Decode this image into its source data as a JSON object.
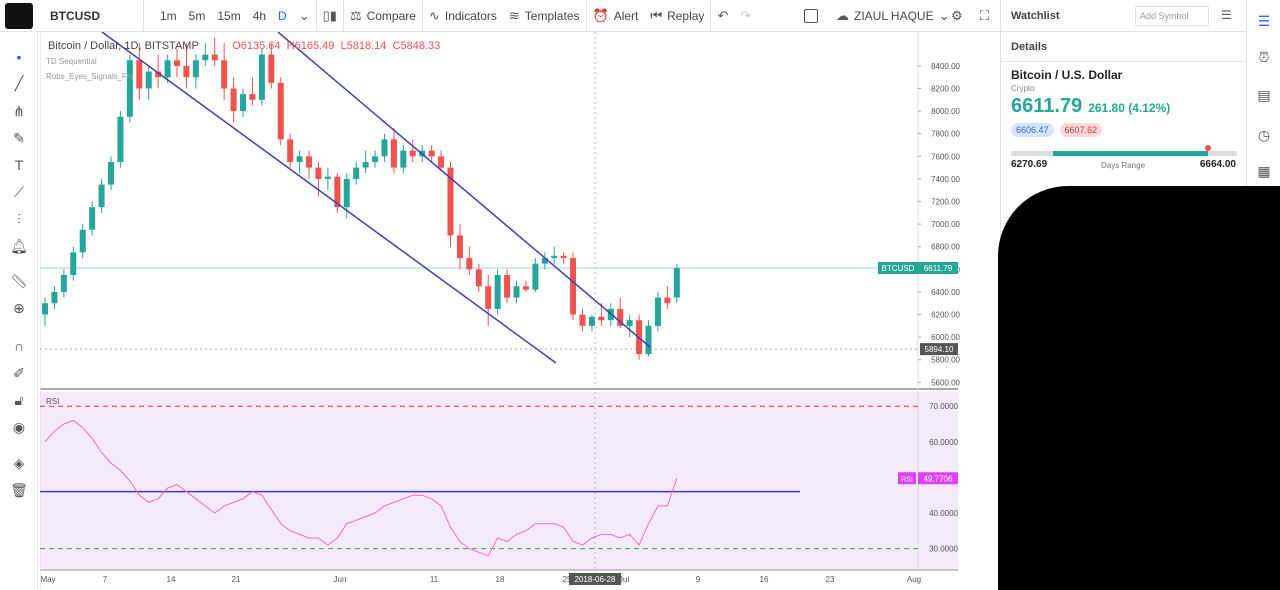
{
  "toolbar": {
    "symbol": "BTCUSD",
    "intervals": [
      "1m",
      "5m",
      "15m",
      "4h",
      "D"
    ],
    "active_interval": "D",
    "compare": "Compare",
    "indicators": "Indicators",
    "templates": "Templates",
    "alert": "Alert",
    "replay": "Replay",
    "user": "ZIAUL HAQUE"
  },
  "legend": {
    "title": "Bitcoin / Dollar, 1D, BITSTAMP",
    "open": "O6135.64",
    "high": "H6165.49",
    "low": "L5818.14",
    "close": "C5848.33",
    "ind1": "TD Sequential",
    "ind2": "Robs_Eyes_Signals_Fix"
  },
  "chart_data": {
    "type": "candlestick",
    "price_axis": [
      "8400.00",
      "8200.00",
      "8000.00",
      "7800.00",
      "7600.00",
      "7400.00",
      "7200.00",
      "7000.00",
      "6800.00",
      "6600.00",
      "6400.00",
      "6200.00",
      "6000.00",
      "5800.00",
      "5600.00"
    ],
    "current_price_label": "BTCUSD",
    "current_price": "6611.79",
    "crosshair_price": "5894.10",
    "rsi_label": "RSI",
    "rsi_axis": [
      "70.0000",
      "60.0000",
      "50.0000",
      "40.0000",
      "30.0000"
    ],
    "rsi_value_label": "RSI",
    "rsi_value": "49.7706",
    "x_labels": [
      "May",
      "7",
      "14",
      "21",
      "Jun",
      "11",
      "18",
      "25",
      "Jul",
      "9",
      "16",
      "23",
      "Aug"
    ],
    "crosshair_date": "2018-06-28",
    "candles": [
      [
        6200,
        6350,
        6100,
        6300
      ],
      [
        6300,
        6450,
        6250,
        6400
      ],
      [
        6400,
        6600,
        6350,
        6550
      ],
      [
        6550,
        6800,
        6500,
        6750
      ],
      [
        6750,
        7000,
        6700,
        6950
      ],
      [
        6950,
        7200,
        6900,
        7150
      ],
      [
        7150,
        7400,
        7100,
        7350
      ],
      [
        7350,
        7600,
        7300,
        7550
      ],
      [
        7550,
        8000,
        7500,
        7950
      ],
      [
        7950,
        8500,
        7900,
        8450
      ],
      [
        8450,
        8600,
        8100,
        8200
      ],
      [
        8200,
        8400,
        8100,
        8350
      ],
      [
        8350,
        8500,
        8200,
        8300
      ],
      [
        8300,
        8500,
        8250,
        8450
      ],
      [
        8450,
        8550,
        8300,
        8400
      ],
      [
        8400,
        8600,
        8200,
        8300
      ],
      [
        8300,
        8500,
        8200,
        8450
      ],
      [
        8450,
        8600,
        8400,
        8500
      ],
      [
        8500,
        8650,
        8400,
        8450
      ],
      [
        8450,
        8600,
        8100,
        8200
      ],
      [
        8200,
        8300,
        7900,
        8000
      ],
      [
        8000,
        8200,
        7950,
        8150
      ],
      [
        8150,
        8300,
        8050,
        8100
      ],
      [
        8100,
        8550,
        8050,
        8500
      ],
      [
        8500,
        8600,
        8200,
        8250
      ],
      [
        8250,
        8300,
        7700,
        7750
      ],
      [
        7750,
        7800,
        7500,
        7550
      ],
      [
        7550,
        7650,
        7450,
        7600
      ],
      [
        7600,
        7650,
        7400,
        7500
      ],
      [
        7500,
        7550,
        7250,
        7400
      ],
      [
        7400,
        7500,
        7300,
        7420
      ],
      [
        7420,
        7450,
        7100,
        7150
      ],
      [
        7150,
        7450,
        7050,
        7400
      ],
      [
        7400,
        7550,
        7350,
        7500
      ],
      [
        7500,
        7650,
        7450,
        7550
      ],
      [
        7550,
        7650,
        7500,
        7600
      ],
      [
        7600,
        7800,
        7550,
        7750
      ],
      [
        7750,
        7850,
        7450,
        7500
      ],
      [
        7500,
        7700,
        7450,
        7650
      ],
      [
        7650,
        7750,
        7550,
        7600
      ],
      [
        7600,
        7700,
        7550,
        7650
      ],
      [
        7650,
        7700,
        7550,
        7600
      ],
      [
        7600,
        7650,
        7480,
        7500
      ],
      [
        7500,
        7550,
        6800,
        6900
      ],
      [
        6900,
        7000,
        6600,
        6700
      ],
      [
        6700,
        6800,
        6550,
        6600
      ],
      [
        6600,
        6650,
        6400,
        6450
      ],
      [
        6450,
        6550,
        6100,
        6250
      ],
      [
        6250,
        6600,
        6200,
        6550
      ],
      [
        6550,
        6600,
        6300,
        6350
      ],
      [
        6350,
        6500,
        6300,
        6450
      ],
      [
        6450,
        6500,
        6400,
        6420
      ],
      [
        6420,
        6700,
        6400,
        6650
      ],
      [
        6650,
        6750,
        6600,
        6700
      ],
      [
        6700,
        6800,
        6650,
        6720
      ],
      [
        6720,
        6750,
        6650,
        6700
      ],
      [
        6700,
        6750,
        6150,
        6200
      ],
      [
        6200,
        6250,
        6050,
        6100
      ],
      [
        6100,
        6200,
        6050,
        6180
      ],
      [
        6180,
        6300,
        6100,
        6150
      ],
      [
        6150,
        6300,
        6100,
        6250
      ],
      [
        6250,
        6350,
        6080,
        6100
      ],
      [
        6100,
        6200,
        6000,
        6150
      ],
      [
        6150,
        6200,
        5800,
        5850
      ],
      [
        5850,
        6150,
        5830,
        6100
      ],
      [
        6100,
        6400,
        6050,
        6350
      ],
      [
        6350,
        6450,
        6250,
        6300
      ],
      [
        6350,
        6650,
        6300,
        6611.79
      ]
    ],
    "rsi": [
      60,
      63,
      65,
      66,
      64,
      61,
      57,
      54,
      52,
      49,
      45,
      43,
      44,
      47,
      48,
      46,
      44,
      42,
      40,
      42,
      43,
      44,
      46,
      45,
      41,
      37,
      35,
      34,
      33,
      33,
      31,
      33,
      37,
      38,
      39,
      40,
      42,
      43,
      44,
      45,
      45,
      44,
      42,
      36,
      32,
      30,
      29,
      28,
      33,
      32,
      34,
      35,
      37,
      37,
      37,
      36,
      32,
      31,
      33,
      34,
      34,
      33,
      34,
      31,
      37,
      42,
      42,
      49.7706
    ]
  },
  "panel": {
    "watchlist": "Watchlist",
    "add_symbol": "Add Symbol",
    "details": "Details",
    "name": "Bitcoin / U.S. Dollar",
    "type": "Crypto",
    "price": "6611.79",
    "change": "261.80 (4.12%)",
    "bid": "6606.47",
    "ask": "6607.62",
    "day_low": "6270.69",
    "day_high": "6664.00",
    "range_label": "Days Range",
    "range_position": 0.87
  }
}
